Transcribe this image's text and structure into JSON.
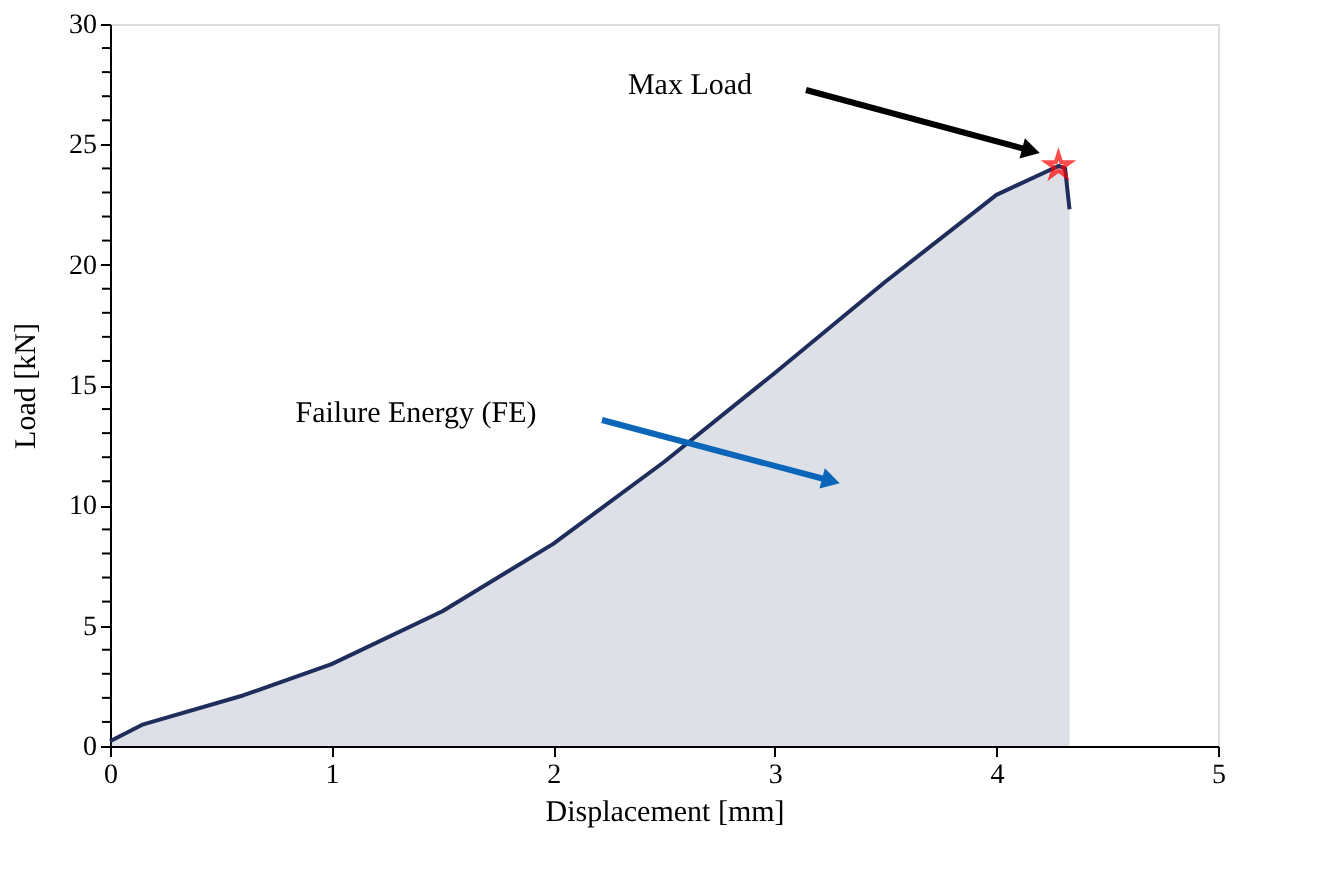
{
  "chart_data": {
    "type": "area",
    "xlabel": "Displacement [mm]",
    "ylabel": "Load [kN]",
    "x": [
      0,
      0.15,
      0.6,
      1,
      1.5,
      2,
      2.5,
      3,
      3.5,
      4,
      4.28,
      4.31,
      4.33
    ],
    "series": [
      {
        "color": "#1f2d5c",
        "values": [
          0.2,
          0.9,
          2.1,
          3.4,
          5.6,
          8.4,
          11.8,
          15.5,
          19.3,
          22.9,
          24.1,
          24.0,
          22.3
        ]
      },
      {
        "type": "scatter",
        "marker": "star",
        "color": "#ff0000",
        "x": [
          4.28
        ],
        "values": [
          24.1
        ]
      }
    ],
    "xlim": [
      0,
      5
    ],
    "xticks": [
      0,
      1,
      2,
      3,
      4,
      5
    ],
    "ylim": [
      0,
      30
    ],
    "yticks": [
      0,
      {
        "value": 1,
        "label": null
      },
      {
        "value": 2,
        "label": null
      },
      {
        "value": 3,
        "label": null
      },
      {
        "value": 4,
        "label": null
      },
      5,
      {
        "value": 6,
        "label": null
      },
      {
        "value": 7,
        "label": null
      },
      {
        "value": 8,
        "label": null
      },
      {
        "value": 9,
        "label": null
      },
      10,
      {
        "value": 11,
        "label": null
      },
      {
        "value": 12,
        "label": null
      },
      {
        "value": 13,
        "label": null
      },
      {
        "value": 14,
        "label": null
      },
      15,
      {
        "value": 16,
        "label": null
      },
      {
        "value": 17,
        "label": null
      },
      {
        "value": 18,
        "label": null
      },
      {
        "value": 19,
        "label": null
      },
      20,
      {
        "value": 21,
        "label": null
      },
      {
        "value": 22,
        "label": null
      },
      {
        "value": 23,
        "label": null
      },
      {
        "value": 24,
        "label": null
      },
      25,
      {
        "value": 26,
        "label": null
      },
      {
        "value": 27,
        "label": null
      },
      {
        "value": 28,
        "label": null
      },
      {
        "value": 29,
        "label": null
      },
      30
    ],
    "grid": false,
    "annotations": [
      "Max Load",
      "Failure Energy (FE)"
    ]
  }
}
